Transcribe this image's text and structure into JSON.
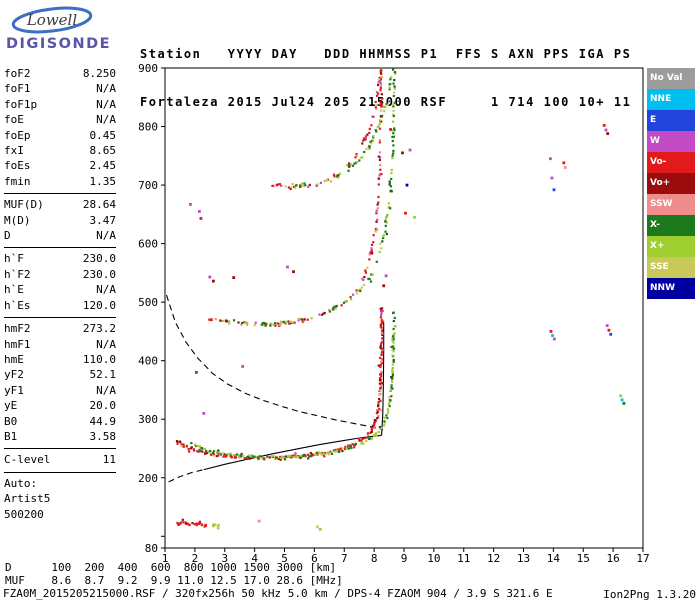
{
  "logo": {
    "top": "Lowell",
    "bottom": "DIGISONDE"
  },
  "header": {
    "line1": "Station   YYYY DAY   DDD HHMMSS P1  FFS S AXN PPS IGA PS",
    "line2": "Fortaleza 2015 Jul24 205 215000 RSF     1 714 100 10+ 11"
  },
  "params": {
    "groups": [
      [
        {
          "label": "foF2",
          "value": "8.250"
        },
        {
          "label": "foF1",
          "value": "N/A"
        },
        {
          "label": "foF1p",
          "value": "N/A"
        },
        {
          "label": "foE",
          "value": "N/A"
        },
        {
          "label": "foEp",
          "value": "0.45"
        },
        {
          "label": "fxI",
          "value": "8.65"
        },
        {
          "label": "foEs",
          "value": "2.45"
        },
        {
          "label": "fmin",
          "value": "1.35"
        }
      ],
      [
        {
          "label": "MUF(D)",
          "value": "28.64"
        },
        {
          "label": "M(D)",
          "value": "3.47"
        },
        {
          "label": "D",
          "value": "N/A"
        }
      ],
      [
        {
          "label": "h`F",
          "value": "230.0"
        },
        {
          "label": "h`F2",
          "value": "230.0"
        },
        {
          "label": "h`E",
          "value": "N/A"
        },
        {
          "label": "h`Es",
          "value": "120.0"
        }
      ],
      [
        {
          "label": "hmF2",
          "value": "273.2"
        },
        {
          "label": "hmF1",
          "value": "N/A"
        },
        {
          "label": "hmE",
          "value": "110.0"
        },
        {
          "label": "yF2",
          "value": "52.1"
        },
        {
          "label": "yF1",
          "value": "N/A"
        },
        {
          "label": "yE",
          "value": "20.0"
        },
        {
          "label": "B0",
          "value": "44.9"
        },
        {
          "label": "B1",
          "value": "3.58"
        }
      ],
      [
        {
          "label": "C-level",
          "value": "11"
        }
      ],
      [
        {
          "label": "Auto:",
          "value": ""
        },
        {
          "label": "Artist5",
          "value": ""
        },
        {
          "label": "500200",
          "value": ""
        }
      ]
    ]
  },
  "legend": [
    {
      "label": "No Val",
      "color": "#9C9C9C"
    },
    {
      "label": "NNE",
      "color": "#00BFEF"
    },
    {
      "label": "E",
      "color": "#2244DD"
    },
    {
      "label": "W",
      "color": "#C24AC2"
    },
    {
      "label": "Vo-",
      "color": "#E31A1A"
    },
    {
      "label": "Vo+",
      "color": "#9B0D0D"
    },
    {
      "label": "SSW",
      "color": "#F08C8C"
    },
    {
      "label": "X-",
      "color": "#1C7A1C"
    },
    {
      "label": "X+",
      "color": "#9FCE30"
    },
    {
      "label": "SSE",
      "color": "#C9C95A"
    },
    {
      "label": "NNW",
      "color": "#0000A0"
    }
  ],
  "footer": {
    "d_label": "D",
    "d_values": [
      "100",
      "200",
      "400",
      "600",
      "800",
      "1000",
      "1500",
      "3000"
    ],
    "d_unit": "[km]",
    "muf_label": "MUF",
    "muf_values": [
      "8.6",
      "8.7",
      "9.2",
      "9.9",
      "11.0",
      "12.5",
      "17.0",
      "28.6"
    ],
    "muf_unit": "[MHz]",
    "status": "FZA0M_2015205215000.RSF / 320fx256h 50 kHz 5.0 km / DPS-4 FZAOM 904 / 3.9 S 321.6 E",
    "version": "Ion2Png 1.3.20"
  },
  "chart_data": {
    "type": "scatter",
    "title": "Digisonde ionogram Fortaleza 2015 Jul24 205 215000",
    "xlabel": "[MHz]",
    "ylabel": "[km]",
    "xlim": [
      1,
      17
    ],
    "ylim": [
      80,
      900
    ],
    "grid": false,
    "x_ticks": [
      1,
      2,
      3,
      4,
      5,
      6,
      7,
      8,
      9,
      10,
      11,
      12,
      13,
      14,
      15,
      16,
      17
    ],
    "y_ticks": [
      80,
      100,
      200,
      300,
      400,
      500,
      600,
      700,
      800,
      900
    ],
    "y_tick_labels": [
      900,
      800,
      700,
      600,
      500,
      400,
      300,
      200,
      80
    ],
    "traces": [
      {
        "name": "F-hop1-O",
        "seed": 11,
        "density": 0.95,
        "jitter": 2.4,
        "double": 0.5,
        "colors": [
          [
            "#E31A1A",
            0.52
          ],
          [
            "#9B0D0D",
            0.22
          ],
          [
            "#F08C8C",
            0.12
          ],
          [
            "#C24AC2",
            0.07
          ],
          [
            "#C9C95A",
            0.07
          ]
        ],
        "points": [
          [
            1.4,
            263
          ],
          [
            1.7,
            252
          ],
          [
            2.0,
            246
          ],
          [
            2.5,
            240
          ],
          [
            3.0,
            237
          ],
          [
            3.6,
            235
          ],
          [
            4.2,
            234
          ],
          [
            4.8,
            234
          ],
          [
            5.4,
            236
          ],
          [
            6.0,
            239
          ],
          [
            6.5,
            243
          ],
          [
            7.0,
            250
          ],
          [
            7.4,
            258
          ],
          [
            7.7,
            268
          ],
          [
            7.95,
            282
          ],
          [
            8.1,
            302
          ],
          [
            8.18,
            330
          ],
          [
            8.22,
            368
          ],
          [
            8.245,
            420
          ],
          [
            8.25,
            470
          ],
          [
            8.255,
            495
          ]
        ]
      },
      {
        "name": "F-hop1-X",
        "seed": 22,
        "density": 0.8,
        "jitter": 2.4,
        "double": 0.35,
        "colors": [
          [
            "#1C7A1C",
            0.45
          ],
          [
            "#9FCE30",
            0.35
          ],
          [
            "#C9C95A",
            0.12
          ],
          [
            "#155515",
            0.08
          ]
        ],
        "points": [
          [
            1.9,
            258
          ],
          [
            2.4,
            246
          ],
          [
            3.0,
            240
          ],
          [
            3.6,
            237
          ],
          [
            4.2,
            235
          ],
          [
            4.8,
            235
          ],
          [
            5.4,
            236
          ],
          [
            6.0,
            239
          ],
          [
            6.6,
            243
          ],
          [
            7.1,
            250
          ],
          [
            7.55,
            258
          ],
          [
            8.0,
            270
          ],
          [
            8.3,
            288
          ],
          [
            8.45,
            310
          ],
          [
            8.55,
            340
          ],
          [
            8.62,
            385
          ],
          [
            8.66,
            440
          ],
          [
            8.67,
            485
          ]
        ]
      },
      {
        "name": "F-hop2-O",
        "seed": 33,
        "density": 0.5,
        "jitter": 3.2,
        "double": 0.3,
        "colors": [
          [
            "#E31A1A",
            0.42
          ],
          [
            "#9B0D0D",
            0.22
          ],
          [
            "#C24AC2",
            0.16
          ],
          [
            "#F08C8C",
            0.12
          ],
          [
            "#C9C95A",
            0.08
          ]
        ],
        "points": [
          [
            2.3,
            474
          ],
          [
            2.8,
            468
          ],
          [
            3.4,
            464
          ],
          [
            4.0,
            462
          ],
          [
            4.6,
            463
          ],
          [
            5.2,
            466
          ],
          [
            5.8,
            471
          ],
          [
            6.3,
            479
          ],
          [
            6.8,
            492
          ],
          [
            7.2,
            508
          ],
          [
            7.5,
            528
          ],
          [
            7.75,
            556
          ],
          [
            7.95,
            595
          ],
          [
            8.08,
            645
          ],
          [
            8.16,
            705
          ],
          [
            8.21,
            775
          ],
          [
            8.24,
            850
          ],
          [
            8.25,
            905
          ]
        ]
      },
      {
        "name": "F-hop2-X",
        "seed": 44,
        "density": 0.4,
        "jitter": 3.2,
        "double": 0.25,
        "colors": [
          [
            "#1C7A1C",
            0.4
          ],
          [
            "#9FCE30",
            0.35
          ],
          [
            "#C9C95A",
            0.15
          ],
          [
            "#155515",
            0.1
          ]
        ],
        "points": [
          [
            2.9,
            470
          ],
          [
            3.6,
            464
          ],
          [
            4.3,
            463
          ],
          [
            5.0,
            466
          ],
          [
            5.7,
            471
          ],
          [
            6.3,
            480
          ],
          [
            6.9,
            494
          ],
          [
            7.4,
            512
          ],
          [
            7.8,
            538
          ],
          [
            8.1,
            572
          ],
          [
            8.35,
            620
          ],
          [
            8.52,
            680
          ],
          [
            8.62,
            750
          ],
          [
            8.67,
            830
          ],
          [
            8.69,
            905
          ]
        ]
      },
      {
        "name": "F-hop3-O",
        "seed": 55,
        "density": 0.5,
        "jitter": 3.8,
        "double": 0.35,
        "colors": [
          [
            "#E31A1A",
            0.4
          ],
          [
            "#9B0D0D",
            0.22
          ],
          [
            "#C24AC2",
            0.18
          ],
          [
            "#F08C8C",
            0.12
          ],
          [
            "#C9C95A",
            0.08
          ]
        ],
        "points": [
          [
            4.6,
            700
          ],
          [
            5.2,
            696
          ],
          [
            5.8,
            698
          ],
          [
            6.3,
            705
          ],
          [
            6.8,
            718
          ],
          [
            7.2,
            737
          ],
          [
            7.55,
            762
          ],
          [
            7.85,
            795
          ],
          [
            8.05,
            835
          ],
          [
            8.18,
            880
          ],
          [
            8.24,
            910
          ]
        ]
      },
      {
        "name": "F-hop3-X",
        "seed": 66,
        "density": 0.42,
        "jitter": 3.8,
        "double": 0.3,
        "colors": [
          [
            "#1C7A1C",
            0.38
          ],
          [
            "#9FCE30",
            0.34
          ],
          [
            "#C9C95A",
            0.16
          ],
          [
            "#155515",
            0.12
          ]
        ],
        "points": [
          [
            5.3,
            700
          ],
          [
            5.9,
            700
          ],
          [
            6.5,
            707
          ],
          [
            7.0,
            720
          ],
          [
            7.5,
            742
          ],
          [
            7.9,
            772
          ],
          [
            8.25,
            812
          ],
          [
            8.5,
            858
          ],
          [
            8.64,
            905
          ]
        ]
      },
      {
        "name": "Es-O",
        "seed": 77,
        "density": 1.0,
        "jitter": 3.4,
        "double": 0.75,
        "colors": [
          [
            "#E31A1A",
            0.6
          ],
          [
            "#9B0D0D",
            0.3
          ],
          [
            "#F08C8C",
            0.1
          ]
        ],
        "points": [
          [
            1.45,
            124
          ],
          [
            1.7,
            122
          ],
          [
            2.0,
            121
          ],
          [
            2.2,
            120
          ],
          [
            2.45,
            119
          ]
        ]
      },
      {
        "name": "Es-X",
        "seed": 88,
        "density": 0.55,
        "jitter": 2.6,
        "double": 0.3,
        "colors": [
          [
            "#9FCE30",
            0.5
          ],
          [
            "#C9C95A",
            0.5
          ]
        ],
        "points": [
          [
            2.5,
            121
          ],
          [
            2.7,
            119
          ],
          [
            2.9,
            118
          ]
        ]
      }
    ],
    "curves": [
      {
        "name": "muf-transmission-curve",
        "style": "dashed",
        "points": [
          [
            1.05,
            512
          ],
          [
            1.35,
            465
          ],
          [
            1.7,
            432
          ],
          [
            2.1,
            404
          ],
          [
            2.6,
            378
          ],
          [
            3.1,
            360
          ],
          [
            3.7,
            344
          ],
          [
            4.3,
            332
          ],
          [
            4.9,
            322
          ],
          [
            5.5,
            313
          ],
          [
            6.1,
            306
          ],
          [
            6.7,
            299
          ],
          [
            7.3,
            293
          ],
          [
            7.9,
            287
          ],
          [
            8.3,
            282
          ]
        ]
      },
      {
        "name": "profile-extrapolated",
        "style": "dashed",
        "points": [
          [
            1.12,
            193
          ],
          [
            1.5,
            202
          ],
          [
            1.9,
            209
          ],
          [
            2.3,
            214
          ]
        ]
      },
      {
        "name": "profile-fitted",
        "style": "solid",
        "points": [
          [
            2.3,
            214
          ],
          [
            3.0,
            223
          ],
          [
            3.8,
            232
          ],
          [
            4.6,
            241
          ],
          [
            5.4,
            249
          ],
          [
            6.2,
            257
          ],
          [
            6.9,
            263
          ],
          [
            7.5,
            268
          ],
          [
            8.0,
            271
          ],
          [
            8.2,
            272
          ],
          [
            8.25,
            273
          ],
          [
            8.29,
            310
          ],
          [
            8.31,
            360
          ],
          [
            8.32,
            420
          ],
          [
            8.32,
            465
          ]
        ]
      }
    ],
    "noise_points": [
      [
        1.85,
        667,
        "#C24AC2"
      ],
      [
        2.15,
        655,
        "#C24AC2"
      ],
      [
        2.2,
        643,
        "#E31A1A"
      ],
      [
        2.5,
        543,
        "#C24AC2"
      ],
      [
        2.62,
        536,
        "#9B0D0D"
      ],
      [
        3.3,
        542,
        "#9B0D0D"
      ],
      [
        2.05,
        380,
        "#1C7A1C"
      ],
      [
        3.6,
        390,
        "#C24AC2"
      ],
      [
        2.3,
        310,
        "#C24AC2"
      ],
      [
        8.32,
        528,
        "#9B0D0D"
      ],
      [
        8.4,
        545,
        "#C24AC2"
      ],
      [
        8.55,
        795,
        "#E31A1A"
      ],
      [
        8.95,
        755,
        "#9B0D0D"
      ],
      [
        9.2,
        760,
        "#C24AC2"
      ],
      [
        9.1,
        700,
        "#0000A0"
      ],
      [
        9.05,
        652,
        "#E31A1A"
      ],
      [
        9.35,
        645,
        "#9FCE30"
      ],
      [
        13.9,
        745,
        "#C24AC2"
      ],
      [
        13.95,
        712,
        "#C24AC2"
      ],
      [
        14.02,
        692,
        "#2244DD"
      ],
      [
        14.35,
        738,
        "#E31A1A"
      ],
      [
        14.4,
        730,
        "#F08C8C"
      ],
      [
        13.92,
        450,
        "#E31A1A"
      ],
      [
        13.97,
        443,
        "#00BFEF"
      ],
      [
        14.03,
        437,
        "#C24AC2"
      ],
      [
        15.7,
        802,
        "#E31A1A"
      ],
      [
        15.76,
        794,
        "#C24AC2"
      ],
      [
        15.82,
        788,
        "#9B0D0D"
      ],
      [
        15.8,
        460,
        "#C24AC2"
      ],
      [
        15.86,
        452,
        "#E31A1A"
      ],
      [
        15.92,
        445,
        "#2244DD"
      ],
      [
        16.25,
        340,
        "#9FCE30"
      ],
      [
        16.3,
        333,
        "#00BFEF"
      ],
      [
        16.36,
        327,
        "#1C7A1C"
      ],
      [
        6.1,
        116,
        "#C9C95A"
      ],
      [
        6.2,
        112,
        "#9FCE30"
      ],
      [
        4.15,
        126,
        "#F08C8C"
      ],
      [
        2.62,
        118,
        "#9FCE30"
      ],
      [
        2.78,
        114,
        "#C9C95A"
      ],
      [
        5.1,
        560,
        "#C24AC2"
      ],
      [
        5.3,
        552,
        "#9B0D0D"
      ],
      [
        3.05,
        468,
        "#9B0D0D"
      ],
      [
        2.55,
        470,
        "#E31A1A"
      ]
    ]
  }
}
